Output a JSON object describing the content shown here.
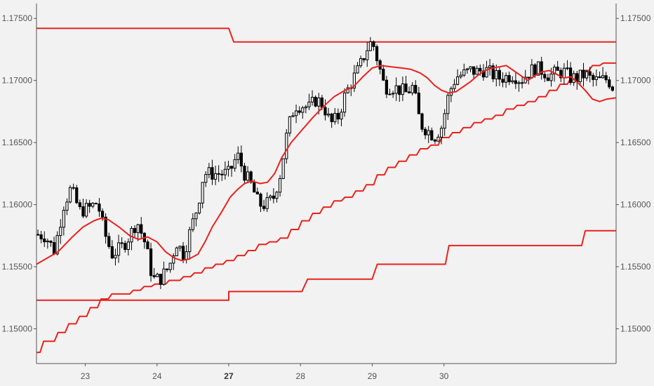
{
  "chart_data": {
    "type": "candlestick",
    "colors": {
      "background": "#f2f2f2",
      "indicator": "#e8231f",
      "candle_up_fill": "#f2f2f2",
      "candle_down_fill": "#000000",
      "candle_outline": "#000000",
      "axis": "#555555"
    },
    "y_axis": {
      "range": [
        1.1472,
        1.1762
      ],
      "ticks": [
        "1.15000",
        "1.15500",
        "1.16000",
        "1.16500",
        "1.17000",
        "1.17500"
      ],
      "tick_values": [
        1.15,
        1.155,
        1.16,
        1.165,
        1.17,
        1.175
      ],
      "sides": "both"
    },
    "x_axis": {
      "range": [
        22.2,
        30.28
      ],
      "ticks": [
        {
          "label": "23",
          "value": 22.88,
          "bold": false
        },
        {
          "label": "24",
          "value": 23.88,
          "bold": false
        },
        {
          "label": "27",
          "value": 24.88,
          "bold": true
        },
        {
          "label": "28",
          "value": 25.88,
          "bold": false
        },
        {
          "label": "29",
          "value": 26.88,
          "bold": false
        },
        {
          "label": "30",
          "value": 27.88,
          "bold": false
        }
      ]
    },
    "candle_ohlc_anchors": [
      [
        22.2,
        1.1576
      ],
      [
        22.32,
        1.1575
      ],
      [
        22.45,
        1.1563
      ],
      [
        22.58,
        1.16
      ],
      [
        22.68,
        1.1613
      ],
      [
        22.8,
        1.1595
      ],
      [
        22.93,
        1.1597
      ],
      [
        23.05,
        1.1602
      ],
      [
        23.15,
        1.1577
      ],
      [
        23.25,
        1.156
      ],
      [
        23.38,
        1.1565
      ],
      [
        23.5,
        1.1575
      ],
      [
        23.6,
        1.1587
      ],
      [
        23.72,
        1.1568
      ],
      [
        23.82,
        1.154
      ],
      [
        23.92,
        1.154
      ],
      [
        24.05,
        1.155
      ],
      [
        24.15,
        1.157
      ],
      [
        24.25,
        1.156
      ],
      [
        24.35,
        1.158
      ],
      [
        24.45,
        1.16
      ],
      [
        24.53,
        1.1625
      ],
      [
        24.63,
        1.1625
      ],
      [
        24.75,
        1.1625
      ],
      [
        24.88,
        1.1625
      ],
      [
        25.0,
        1.164
      ],
      [
        25.1,
        1.1625
      ],
      [
        25.2,
        1.1615
      ],
      [
        25.3,
        1.16
      ],
      [
        25.4,
        1.16
      ],
      [
        25.5,
        1.1605
      ],
      [
        25.6,
        1.1625
      ],
      [
        25.7,
        1.166
      ],
      [
        25.8,
        1.168
      ],
      [
        25.9,
        1.168
      ],
      [
        26.0,
        1.1678
      ],
      [
        26.1,
        1.1685
      ],
      [
        26.2,
        1.168
      ],
      [
        26.3,
        1.1665
      ],
      [
        26.4,
        1.167
      ],
      [
        26.5,
        1.1688
      ],
      [
        26.6,
        1.17
      ],
      [
        26.7,
        1.171
      ],
      [
        26.8,
        1.1725
      ],
      [
        26.88,
        1.1732
      ],
      [
        26.96,
        1.1715
      ],
      [
        27.05,
        1.1695
      ],
      [
        27.15,
        1.1695
      ],
      [
        27.25,
        1.1693
      ],
      [
        27.35,
        1.169
      ],
      [
        27.45,
        1.1695
      ],
      [
        27.55,
        1.1665
      ],
      [
        27.65,
        1.166
      ],
      [
        27.75,
        1.1655
      ],
      [
        27.85,
        1.1663
      ],
      [
        27.95,
        1.169
      ],
      [
        28.05,
        1.1703
      ],
      [
        28.15,
        1.1705
      ],
      [
        28.25,
        1.1708
      ],
      [
        28.35,
        1.1707
      ],
      [
        28.45,
        1.1709
      ],
      [
        28.55,
        1.1705
      ],
      [
        28.65,
        1.1702
      ],
      [
        28.75,
        1.1703
      ],
      [
        28.85,
        1.1705
      ],
      [
        28.95,
        1.17
      ],
      [
        29.05,
        1.1706
      ],
      [
        29.15,
        1.171
      ],
      [
        29.25,
        1.1708
      ],
      [
        29.35,
        1.1704
      ],
      [
        29.45,
        1.1706
      ],
      [
        29.55,
        1.1707
      ],
      [
        29.65,
        1.1702
      ],
      [
        29.75,
        1.1702
      ],
      [
        29.85,
        1.1705
      ],
      [
        29.95,
        1.17
      ],
      [
        30.05,
        1.17
      ],
      [
        30.15,
        1.1701
      ],
      [
        30.22,
        1.1697
      ],
      [
        30.28,
        1.1686
      ]
    ],
    "moving_average": [
      [
        22.2,
        1.1552
      ],
      [
        22.5,
        1.1562
      ],
      [
        22.7,
        1.1574
      ],
      [
        22.85,
        1.1582
      ],
      [
        23.0,
        1.1587
      ],
      [
        23.1,
        1.1589
      ],
      [
        23.2,
        1.1588
      ],
      [
        23.35,
        1.1582
      ],
      [
        23.5,
        1.1575
      ],
      [
        23.62,
        1.1572
      ],
      [
        23.75,
        1.1574
      ],
      [
        23.88,
        1.157
      ],
      [
        24.0,
        1.1562
      ],
      [
        24.12,
        1.1557
      ],
      [
        24.22,
        1.1555
      ],
      [
        24.32,
        1.1556
      ],
      [
        24.45,
        1.156
      ],
      [
        24.55,
        1.157
      ],
      [
        24.65,
        1.1582
      ],
      [
        24.78,
        1.1594
      ],
      [
        24.9,
        1.1606
      ],
      [
        25.0,
        1.1612
      ],
      [
        25.1,
        1.1617
      ],
      [
        25.2,
        1.1619
      ],
      [
        25.32,
        1.1617
      ],
      [
        25.42,
        1.1618
      ],
      [
        25.52,
        1.1625
      ],
      [
        25.62,
        1.1638
      ],
      [
        25.75,
        1.165
      ],
      [
        25.9,
        1.166
      ],
      [
        26.05,
        1.167
      ],
      [
        26.2,
        1.1679
      ],
      [
        26.35,
        1.1687
      ],
      [
        26.5,
        1.1692
      ],
      [
        26.62,
        1.1695
      ],
      [
        26.75,
        1.1703
      ],
      [
        26.88,
        1.171
      ],
      [
        27.0,
        1.1712
      ],
      [
        27.15,
        1.1711
      ],
      [
        27.3,
        1.171
      ],
      [
        27.42,
        1.1709
      ],
      [
        27.55,
        1.1706
      ],
      [
        27.65,
        1.1702
      ],
      [
        27.75,
        1.1696
      ],
      [
        27.85,
        1.1692
      ],
      [
        27.95,
        1.169
      ],
      [
        28.05,
        1.1691
      ],
      [
        28.15,
        1.1695
      ],
      [
        28.25,
        1.1699
      ],
      [
        28.35,
        1.1704
      ],
      [
        28.45,
        1.1708
      ],
      [
        28.55,
        1.171
      ],
      [
        28.65,
        1.1711
      ],
      [
        28.75,
        1.1712
      ],
      [
        28.85,
        1.1708
      ],
      [
        28.95,
        1.1704
      ],
      [
        29.05,
        1.17
      ],
      [
        29.15,
        1.1704
      ],
      [
        29.25,
        1.1707
      ],
      [
        29.35,
        1.1708
      ],
      [
        29.45,
        1.1705
      ],
      [
        29.55,
        1.1702
      ],
      [
        29.65,
        1.1703
      ],
      [
        29.75,
        1.1698
      ],
      [
        29.85,
        1.1692
      ],
      [
        29.95,
        1.1685
      ],
      [
        30.05,
        1.1683
      ],
      [
        30.15,
        1.1685
      ],
      [
        30.28,
        1.1686
      ]
    ],
    "upper_band_steps": [
      [
        22.2,
        1.1742
      ],
      [
        24.88,
        1.1742
      ],
      [
        24.95,
        1.1731
      ],
      [
        30.28,
        1.1731
      ]
    ],
    "lower_band_steps": [
      [
        22.2,
        1.1523
      ],
      [
        24.88,
        1.1523
      ],
      [
        24.88,
        1.153
      ],
      [
        25.9,
        1.153
      ],
      [
        25.98,
        1.154
      ],
      [
        26.88,
        1.154
      ],
      [
        26.95,
        1.1552
      ],
      [
        27.9,
        1.1552
      ],
      [
        27.95,
        1.1567
      ],
      [
        29.8,
        1.1567
      ],
      [
        29.85,
        1.1579
      ],
      [
        30.28,
        1.1579
      ]
    ],
    "rising_stop_steps": [
      [
        22.2,
        1.1481
      ],
      [
        22.25,
        1.1481
      ],
      [
        22.3,
        1.149
      ],
      [
        22.45,
        1.149
      ],
      [
        22.5,
        1.1497
      ],
      [
        22.6,
        1.1497
      ],
      [
        22.65,
        1.1504
      ],
      [
        22.75,
        1.1504
      ],
      [
        22.8,
        1.151
      ],
      [
        22.9,
        1.151
      ],
      [
        22.95,
        1.1517
      ],
      [
        23.05,
        1.1517
      ],
      [
        23.1,
        1.1524
      ],
      [
        23.2,
        1.1524
      ],
      [
        23.25,
        1.1528
      ],
      [
        23.5,
        1.1528
      ],
      [
        23.55,
        1.1531
      ],
      [
        23.65,
        1.1531
      ],
      [
        23.7,
        1.1534
      ],
      [
        23.8,
        1.1534
      ],
      [
        23.85,
        1.1536
      ],
      [
        24.0,
        1.1536
      ],
      [
        24.05,
        1.1539
      ],
      [
        24.2,
        1.1539
      ],
      [
        24.25,
        1.1542
      ],
      [
        24.35,
        1.1542
      ],
      [
        24.4,
        1.1545
      ],
      [
        24.5,
        1.1545
      ],
      [
        24.55,
        1.1549
      ],
      [
        24.65,
        1.1549
      ],
      [
        24.7,
        1.1552
      ],
      [
        24.8,
        1.1552
      ],
      [
        24.85,
        1.1555
      ],
      [
        24.95,
        1.1555
      ],
      [
        25.0,
        1.1559
      ],
      [
        25.1,
        1.1559
      ],
      [
        25.15,
        1.1563
      ],
      [
        25.25,
        1.1563
      ],
      [
        25.3,
        1.1568
      ],
      [
        25.4,
        1.1568
      ],
      [
        25.45,
        1.157
      ],
      [
        25.55,
        1.157
      ],
      [
        25.6,
        1.1573
      ],
      [
        25.7,
        1.1573
      ],
      [
        25.75,
        1.158
      ],
      [
        25.85,
        1.158
      ],
      [
        25.9,
        1.1587
      ],
      [
        26.0,
        1.1587
      ],
      [
        26.05,
        1.1593
      ],
      [
        26.15,
        1.1593
      ],
      [
        26.2,
        1.1598
      ],
      [
        26.3,
        1.1598
      ],
      [
        26.35,
        1.1603
      ],
      [
        26.45,
        1.1603
      ],
      [
        26.5,
        1.1606
      ],
      [
        26.6,
        1.1606
      ],
      [
        26.65,
        1.1611
      ],
      [
        26.75,
        1.1611
      ],
      [
        26.8,
        1.1616
      ],
      [
        26.9,
        1.1616
      ],
      [
        26.95,
        1.1624
      ],
      [
        27.05,
        1.1624
      ],
      [
        27.1,
        1.163
      ],
      [
        27.2,
        1.163
      ],
      [
        27.25,
        1.1635
      ],
      [
        27.35,
        1.1635
      ],
      [
        27.4,
        1.164
      ],
      [
        27.5,
        1.164
      ],
      [
        27.55,
        1.1645
      ],
      [
        27.65,
        1.1645
      ],
      [
        27.7,
        1.1648
      ],
      [
        27.8,
        1.1648
      ],
      [
        27.85,
        1.1654
      ],
      [
        27.95,
        1.1654
      ],
      [
        28.0,
        1.1658
      ],
      [
        28.1,
        1.1658
      ],
      [
        28.15,
        1.1662
      ],
      [
        28.25,
        1.1662
      ],
      [
        28.3,
        1.1666
      ],
      [
        28.4,
        1.1666
      ],
      [
        28.45,
        1.1669
      ],
      [
        28.55,
        1.1669
      ],
      [
        28.6,
        1.1672
      ],
      [
        28.7,
        1.1672
      ],
      [
        28.75,
        1.1677
      ],
      [
        28.85,
        1.1677
      ],
      [
        28.9,
        1.168
      ],
      [
        29.0,
        1.168
      ],
      [
        29.05,
        1.1683
      ],
      [
        29.15,
        1.1683
      ],
      [
        29.2,
        1.1687
      ],
      [
        29.3,
        1.1687
      ],
      [
        29.35,
        1.1692
      ],
      [
        29.45,
        1.1692
      ],
      [
        29.5,
        1.1697
      ],
      [
        29.6,
        1.1697
      ],
      [
        29.65,
        1.1702
      ],
      [
        29.75,
        1.1702
      ],
      [
        29.8,
        1.1708
      ],
      [
        29.9,
        1.1708
      ],
      [
        29.95,
        1.1712
      ],
      [
        30.05,
        1.1712
      ],
      [
        30.1,
        1.1714
      ],
      [
        30.28,
        1.1714
      ]
    ]
  }
}
